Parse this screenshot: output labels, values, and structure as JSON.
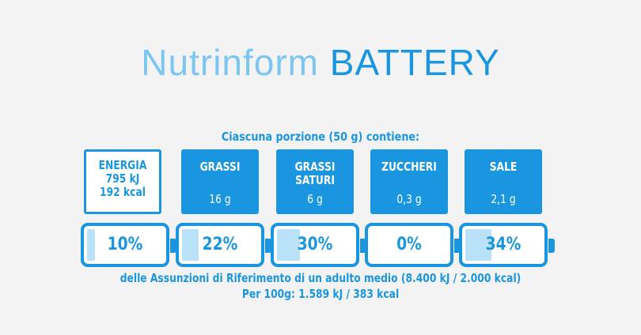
{
  "title": {
    "part1": "Nutrinform",
    "part2": "BATTERY"
  },
  "portion_text": "Ciascuna porzione (50 g) contiene:",
  "nutrients": [
    {
      "label_lines": [
        "ENERGIA"
      ],
      "value_lines": [
        "795 kJ",
        "192 kcal"
      ],
      "percent_label": "10%",
      "percent": 10
    },
    {
      "label_lines": [
        "GRASSI"
      ],
      "value_lines": [
        "16 g"
      ],
      "percent_label": "22%",
      "percent": 22
    },
    {
      "label_lines": [
        "GRASSI",
        "SATURI"
      ],
      "value_lines": [
        "6 g"
      ],
      "percent_label": "30%",
      "percent": 30
    },
    {
      "label_lines": [
        "ZUCCHERI"
      ],
      "value_lines": [
        "0,3 g"
      ],
      "percent_label": "0%",
      "percent": 0
    },
    {
      "label_lines": [
        "SALE"
      ],
      "value_lines": [
        "2,1 g"
      ],
      "percent_label": "34%",
      "percent": 34
    }
  ],
  "footer": {
    "line1": "delle Assunzioni di Riferimento di un adulto medio (8.400 kJ / 2.000 kcal)",
    "line2": "Per 100g: 1.589 kJ / 383 kcal"
  },
  "colors": {
    "primary": "#1a96e0",
    "light": "#7cc6f0",
    "fill": "#b9e1f7",
    "background": "#f3f3f3"
  }
}
